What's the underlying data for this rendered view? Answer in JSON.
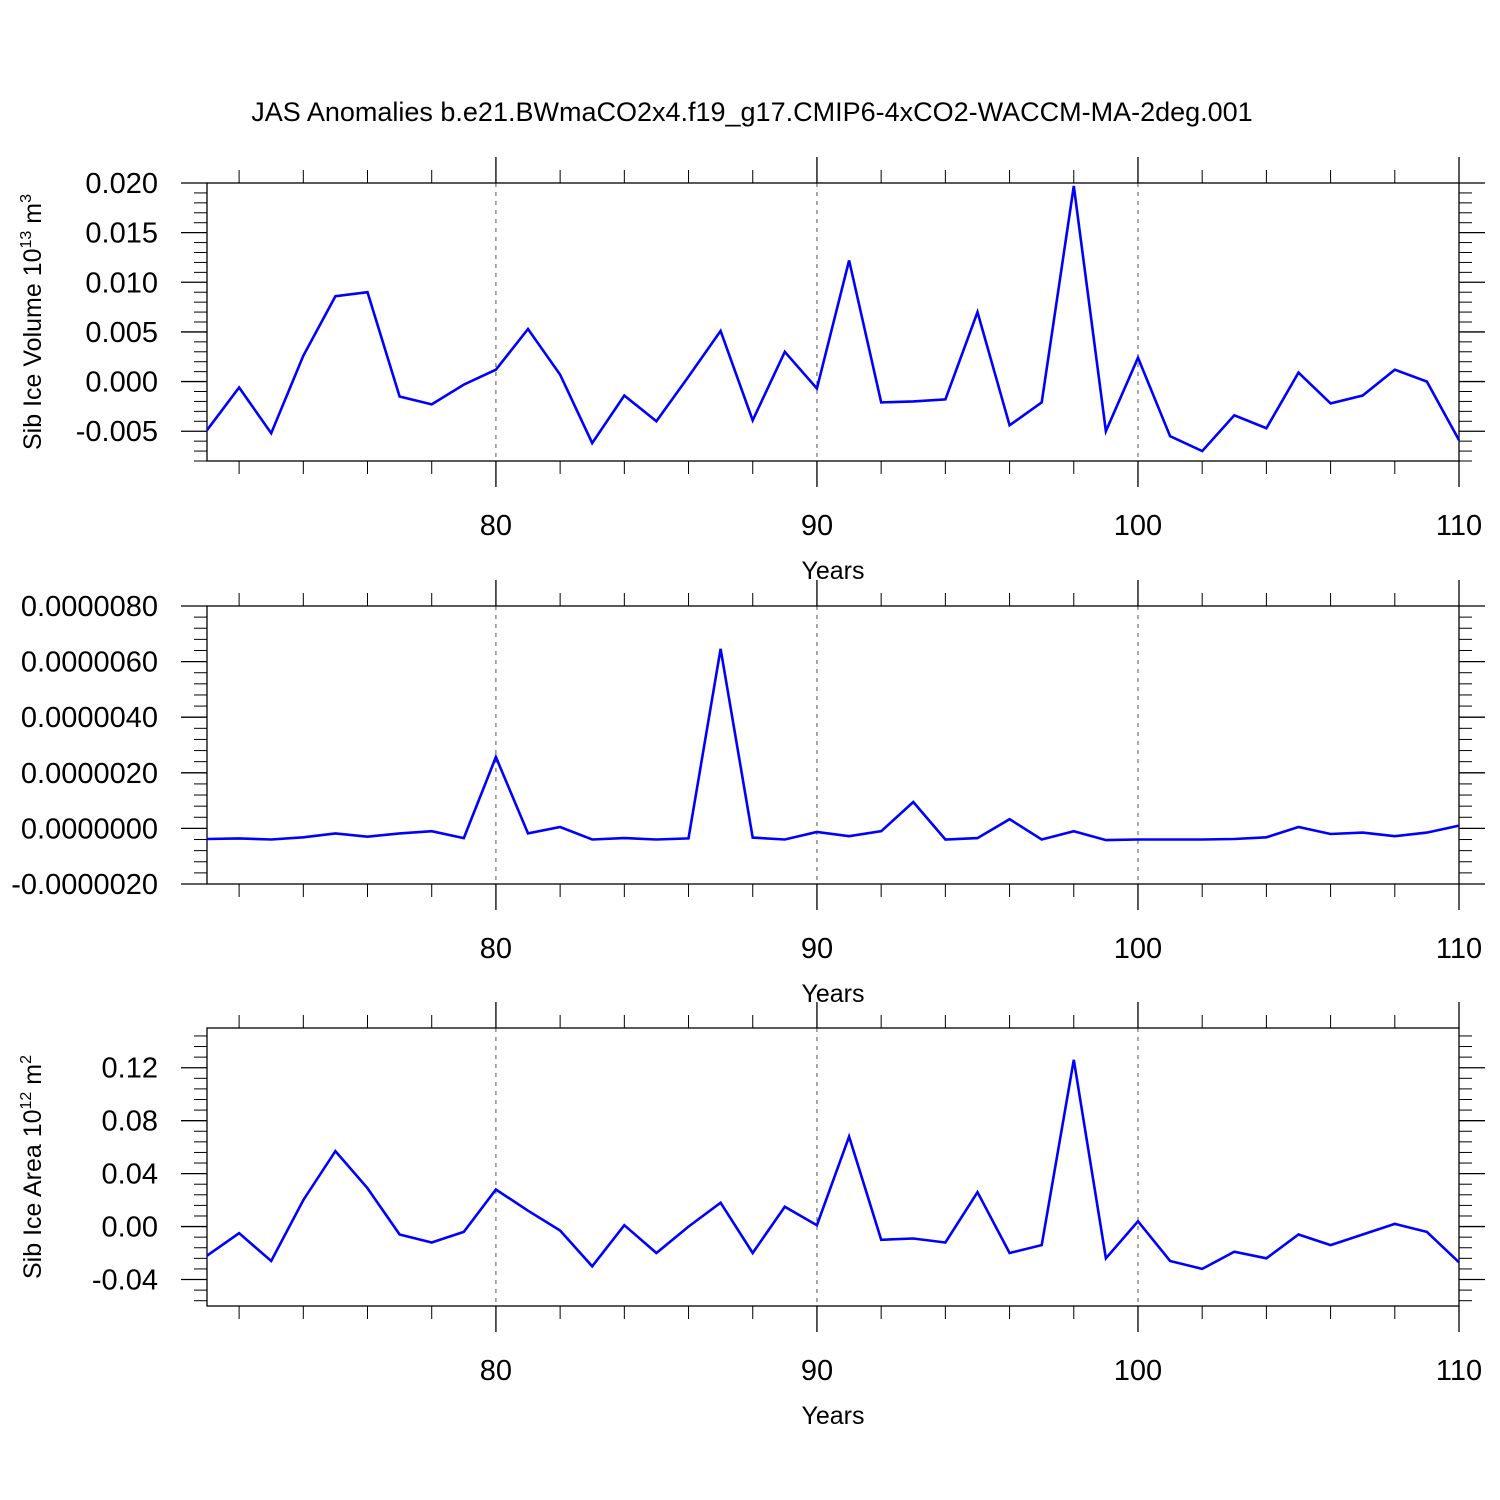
{
  "title": "JAS Anomalies b.e21.BWmaCO2x4.f19_g17.CMIP6-4xCO2-WACCM-MA-2deg.001",
  "colors": {
    "line": "#0000ff",
    "axis": "#000000",
    "grid": "#555555"
  },
  "chart_data": [
    {
      "type": "line",
      "xlabel": "Years",
      "ylabel": {
        "text": "Sib Ice Volume 10",
        "sup": "13",
        "unit": " m",
        "unit_sup": "3"
      },
      "xlim": [
        71,
        110
      ],
      "ylim": [
        -0.008,
        0.02
      ],
      "grid": "dashed vertical at major x ticks",
      "x_ticks": [
        80,
        90,
        100,
        110
      ],
      "x_tick_labels": [
        "80",
        "90",
        "100",
        "110"
      ],
      "y_ticks": [
        -0.005,
        0.0,
        0.005,
        0.01,
        0.015,
        0.02
      ],
      "y_tick_labels": [
        "-0.005",
        "0.000",
        "0.005",
        "0.010",
        "0.015",
        "0.020"
      ],
      "series": [
        {
          "x": [
            71,
            72,
            73,
            74,
            75,
            76,
            77,
            78,
            79,
            80,
            81,
            82,
            83,
            84,
            85,
            86,
            87,
            88,
            89,
            90,
            91,
            92,
            93,
            94,
            95,
            96,
            97,
            98,
            99,
            100,
            101,
            102,
            103,
            104,
            105,
            106,
            107,
            108,
            109,
            110
          ],
          "values": [
            -0.0049,
            -0.0006,
            -0.0052,
            0.0026,
            0.0086,
            0.009,
            -0.0015,
            -0.0023,
            -0.0003,
            0.0012,
            0.0053,
            0.0007,
            -0.0062,
            -0.0014,
            -0.004,
            0.0005,
            0.0051,
            -0.0039,
            0.003,
            -0.0007,
            0.0122,
            -0.0021,
            -0.002,
            -0.0018,
            0.007,
            -0.0044,
            -0.0021,
            0.0197,
            -0.005,
            0.0024,
            -0.0055,
            -0.007,
            -0.0034,
            -0.0047,
            0.0009,
            -0.0022,
            -0.0014,
            0.0012,
            0.0,
            -0.0059
          ]
        }
      ]
    },
    {
      "type": "line",
      "xlabel": "Years",
      "ylabel": null,
      "xlim": [
        71,
        110
      ],
      "ylim": [
        -2e-06,
        8e-06
      ],
      "grid": "dashed vertical at major x ticks",
      "x_ticks": [
        80,
        90,
        100,
        110
      ],
      "x_tick_labels": [
        "80",
        "90",
        "100",
        "110"
      ],
      "y_ticks": [
        -2e-06,
        0.0,
        2e-06,
        4e-06,
        6e-06,
        8e-06
      ],
      "y_tick_labels": [
        "-0.0000020",
        "0.0000000",
        "0.0000020",
        "0.0000040",
        "0.0000060",
        "0.0000080"
      ],
      "series": [
        {
          "x": [
            71,
            72,
            73,
            74,
            75,
            76,
            77,
            78,
            79,
            80,
            81,
            82,
            83,
            84,
            85,
            86,
            87,
            88,
            89,
            90,
            91,
            92,
            93,
            94,
            95,
            96,
            97,
            98,
            99,
            100,
            101,
            102,
            103,
            104,
            105,
            106,
            107,
            108,
            109,
            110
          ],
          "values": [
            -3.8e-07,
            -3.6e-07,
            -4e-07,
            -3.2e-07,
            -1.8e-07,
            -3e-07,
            -1.8e-07,
            -1e-07,
            -3.5e-07,
            2.57e-06,
            -1.8e-07,
            5e-08,
            -4e-07,
            -3.5e-07,
            -4e-07,
            -3.6e-07,
            6.46e-06,
            -3.3e-07,
            -4e-07,
            -1.3e-07,
            -2.8e-07,
            -1e-07,
            9.5e-07,
            -4e-07,
            -3.5e-07,
            3.3e-07,
            -4e-07,
            -1e-07,
            -4.2e-07,
            -4e-07,
            -4e-07,
            -4e-07,
            -3.8e-07,
            -3.2e-07,
            5e-08,
            -2e-07,
            -1.5e-07,
            -2.8e-07,
            -1.5e-07,
            1e-07
          ]
        }
      ]
    },
    {
      "type": "line",
      "xlabel": "Years",
      "ylabel": {
        "text": "Sib Ice Area 10",
        "sup": "12",
        "unit": " m",
        "unit_sup": "2"
      },
      "xlim": [
        71,
        110
      ],
      "ylim": [
        -0.06,
        0.15
      ],
      "grid": "dashed vertical at major x ticks",
      "x_ticks": [
        80,
        90,
        100,
        110
      ],
      "x_tick_labels": [
        "80",
        "90",
        "100",
        "110"
      ],
      "y_ticks": [
        -0.04,
        0.0,
        0.04,
        0.08,
        0.12
      ],
      "y_tick_labels": [
        "-0.04",
        "0.00",
        "0.04",
        "0.08",
        "0.12"
      ],
      "series": [
        {
          "x": [
            71,
            72,
            73,
            74,
            75,
            76,
            77,
            78,
            79,
            80,
            81,
            82,
            83,
            84,
            85,
            86,
            87,
            88,
            89,
            90,
            91,
            92,
            93,
            94,
            95,
            96,
            97,
            98,
            99,
            100,
            101,
            102,
            103,
            104,
            105,
            106,
            107,
            108,
            109,
            110
          ],
          "values": [
            -0.022,
            -0.005,
            -0.026,
            0.02,
            0.057,
            0.029,
            -0.006,
            -0.012,
            -0.004,
            0.028,
            0.012,
            -0.003,
            -0.03,
            0.001,
            -0.02,
            0.0,
            0.018,
            -0.02,
            0.015,
            0.001,
            0.068,
            -0.01,
            -0.009,
            -0.012,
            0.026,
            -0.02,
            -0.014,
            0.126,
            -0.024,
            0.004,
            -0.026,
            -0.032,
            -0.019,
            -0.024,
            -0.006,
            -0.014,
            -0.006,
            0.002,
            -0.004,
            -0.027
          ]
        }
      ]
    }
  ]
}
